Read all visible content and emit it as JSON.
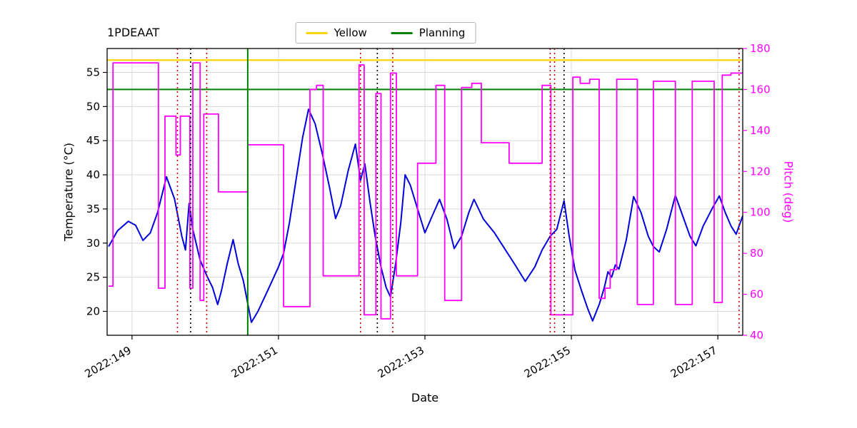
{
  "figure": {
    "title": "1PDEAAT"
  },
  "legend": {
    "items": [
      {
        "label": "Yellow",
        "color": "#ffd700"
      },
      {
        "label": "Planning",
        "color": "#008000"
      }
    ]
  },
  "axes": {
    "x_label": "Date",
    "y_left_label": "Temperature (°C)",
    "y_right_label": "Pitch (deg)",
    "y_right_color": "#ff00ff"
  },
  "chart_data": {
    "type": "line",
    "title": "1PDEAAT",
    "xlabel": "Date",
    "x_unit": "year:day_of_year",
    "xlim": [
      148.66,
      157.34
    ],
    "x_ticks": [
      {
        "value": 149,
        "label": "2022:149"
      },
      {
        "value": 151,
        "label": "2022:151"
      },
      {
        "value": 153,
        "label": "2022:153"
      },
      {
        "value": 155,
        "label": "2022:155"
      },
      {
        "value": 157,
        "label": "2022:157"
      }
    ],
    "ylabel_left": "Temperature (°C)",
    "ylim_left": [
      16.5,
      58.5
    ],
    "y_ticks_left": [
      20,
      25,
      30,
      35,
      40,
      45,
      50,
      55
    ],
    "ylabel_right": "Pitch (deg)",
    "ylim_right": [
      40,
      180
    ],
    "y_ticks_right": [
      40,
      60,
      80,
      100,
      120,
      140,
      160,
      180
    ],
    "grid": true,
    "legend_position": "top-center",
    "series": [
      {
        "name": "temperature",
        "label": "1PDEAAT",
        "axis": "left",
        "color": "#0000dd",
        "style": "solid",
        "width": 2,
        "points": [
          [
            148.68,
            29.5
          ],
          [
            148.8,
            31.8
          ],
          [
            148.95,
            33.2
          ],
          [
            149.05,
            32.6
          ],
          [
            149.15,
            30.4
          ],
          [
            149.25,
            31.5
          ],
          [
            149.35,
            34.5
          ],
          [
            149.47,
            39.7
          ],
          [
            149.58,
            36.5
          ],
          [
            149.68,
            31.0
          ],
          [
            149.73,
            29.0
          ],
          [
            149.78,
            35.8
          ],
          [
            149.83,
            32.0
          ],
          [
            149.93,
            27.5
          ],
          [
            150.03,
            25.0
          ],
          [
            150.1,
            23.5
          ],
          [
            150.17,
            21.0
          ],
          [
            150.22,
            23.0
          ],
          [
            150.3,
            27.0
          ],
          [
            150.38,
            30.5
          ],
          [
            150.45,
            27.0
          ],
          [
            150.52,
            24.5
          ],
          [
            150.63,
            18.4
          ],
          [
            150.72,
            20.0
          ],
          [
            150.85,
            23.0
          ],
          [
            151.0,
            26.5
          ],
          [
            151.07,
            28.5
          ],
          [
            151.15,
            33.0
          ],
          [
            151.25,
            40.0
          ],
          [
            151.33,
            45.5
          ],
          [
            151.41,
            49.6
          ],
          [
            151.5,
            47.5
          ],
          [
            151.6,
            43.0
          ],
          [
            151.7,
            38.0
          ],
          [
            151.78,
            33.6
          ],
          [
            151.85,
            35.5
          ],
          [
            151.95,
            40.5
          ],
          [
            152.05,
            44.5
          ],
          [
            152.12,
            39.2
          ],
          [
            152.18,
            41.6
          ],
          [
            152.25,
            36.0
          ],
          [
            152.32,
            31.0
          ],
          [
            152.4,
            26.5
          ],
          [
            152.47,
            23.5
          ],
          [
            152.53,
            22.1
          ],
          [
            152.6,
            27.0
          ],
          [
            152.67,
            33.0
          ],
          [
            152.73,
            40.0
          ],
          [
            152.8,
            38.5
          ],
          [
            152.9,
            35.0
          ],
          [
            153.0,
            31.5
          ],
          [
            153.1,
            34.0
          ],
          [
            153.2,
            36.4
          ],
          [
            153.3,
            33.5
          ],
          [
            153.4,
            29.2
          ],
          [
            153.5,
            31.0
          ],
          [
            153.6,
            34.5
          ],
          [
            153.67,
            36.4
          ],
          [
            153.8,
            33.5
          ],
          [
            153.95,
            31.5
          ],
          [
            154.1,
            29.0
          ],
          [
            154.22,
            27.0
          ],
          [
            154.37,
            24.4
          ],
          [
            154.5,
            26.5
          ],
          [
            154.6,
            29.0
          ],
          [
            154.71,
            31.0
          ],
          [
            154.8,
            32.0
          ],
          [
            154.9,
            36.2
          ],
          [
            154.97,
            31.0
          ],
          [
            155.05,
            26.0
          ],
          [
            155.14,
            23.0
          ],
          [
            155.22,
            20.5
          ],
          [
            155.29,
            18.6
          ],
          [
            155.38,
            21.0
          ],
          [
            155.45,
            23.5
          ],
          [
            155.5,
            25.8
          ],
          [
            155.55,
            25.0
          ],
          [
            155.6,
            26.8
          ],
          [
            155.65,
            26.2
          ],
          [
            155.75,
            30.5
          ],
          [
            155.85,
            36.8
          ],
          [
            155.95,
            34.5
          ],
          [
            156.05,
            31.0
          ],
          [
            156.12,
            29.5
          ],
          [
            156.2,
            28.7
          ],
          [
            156.3,
            32.0
          ],
          [
            156.42,
            37.0
          ],
          [
            156.52,
            34.0
          ],
          [
            156.62,
            31.0
          ],
          [
            156.7,
            29.6
          ],
          [
            156.8,
            32.5
          ],
          [
            156.92,
            35.0
          ],
          [
            157.02,
            36.9
          ],
          [
            157.1,
            34.5
          ],
          [
            157.18,
            32.5
          ],
          [
            157.25,
            31.3
          ],
          [
            157.34,
            34.0
          ]
        ]
      },
      {
        "name": "pitch",
        "label": "Pitch",
        "axis": "right",
        "color": "#ff00ff",
        "style": "step",
        "width": 1.8,
        "points": [
          [
            148.68,
            64
          ],
          [
            148.74,
            173
          ],
          [
            149.36,
            63
          ],
          [
            149.45,
            147
          ],
          [
            149.6,
            128
          ],
          [
            149.66,
            147
          ],
          [
            149.79,
            63
          ],
          [
            149.83,
            173
          ],
          [
            149.93,
            57
          ],
          [
            149.98,
            148
          ],
          [
            150.18,
            110
          ],
          [
            150.58,
            133
          ],
          [
            151.07,
            54
          ],
          [
            151.43,
            160
          ],
          [
            151.52,
            162
          ],
          [
            151.61,
            69
          ],
          [
            152.1,
            172
          ],
          [
            152.17,
            50
          ],
          [
            152.33,
            158
          ],
          [
            152.4,
            48
          ],
          [
            152.53,
            168
          ],
          [
            152.61,
            69
          ],
          [
            152.9,
            124
          ],
          [
            153.15,
            162
          ],
          [
            153.27,
            57
          ],
          [
            153.5,
            161
          ],
          [
            153.64,
            163
          ],
          [
            153.77,
            134
          ],
          [
            154.15,
            124
          ],
          [
            154.6,
            162
          ],
          [
            154.72,
            50
          ],
          [
            155.02,
            166
          ],
          [
            155.12,
            163
          ],
          [
            155.25,
            165
          ],
          [
            155.38,
            58
          ],
          [
            155.46,
            63
          ],
          [
            155.53,
            72
          ],
          [
            155.62,
            165
          ],
          [
            155.9,
            55
          ],
          [
            156.12,
            164
          ],
          [
            156.42,
            55
          ],
          [
            156.65,
            164
          ],
          [
            156.95,
            56
          ],
          [
            157.06,
            167
          ],
          [
            157.18,
            168
          ],
          [
            157.34,
            168
          ]
        ]
      }
    ],
    "hlines": [
      {
        "name": "yellow-limit",
        "label": "Yellow",
        "axis": "left",
        "y": 56.8,
        "color": "#ffd700",
        "style": "solid",
        "width": 2.2
      },
      {
        "name": "planning-limit",
        "label": "Planning",
        "axis": "left",
        "y": 52.5,
        "color": "#008000",
        "style": "solid",
        "width": 2
      }
    ],
    "vlines": [
      {
        "name": "planning-start",
        "x": 150.58,
        "color": "#008000",
        "style": "solid",
        "width": 2
      },
      {
        "name": "event-red-1",
        "x": 149.62,
        "color": "#cc0000",
        "style": "dotted",
        "width": 1.6
      },
      {
        "name": "event-black-1",
        "x": 149.8,
        "color": "#000000",
        "style": "dotted",
        "width": 1.6
      },
      {
        "name": "event-red-2",
        "x": 150.02,
        "color": "#cc0000",
        "style": "dotted",
        "width": 1.6
      },
      {
        "name": "event-red-3",
        "x": 152.12,
        "color": "#cc0000",
        "style": "dotted",
        "width": 1.6
      },
      {
        "name": "event-black-2",
        "x": 152.35,
        "color": "#000000",
        "style": "dotted",
        "width": 1.6
      },
      {
        "name": "event-red-4",
        "x": 152.56,
        "color": "#cc0000",
        "style": "dotted",
        "width": 1.6
      },
      {
        "name": "event-red-5",
        "x": 154.71,
        "color": "#cc0000",
        "style": "dotted",
        "width": 1.6
      },
      {
        "name": "event-red-6",
        "x": 154.77,
        "color": "#cc0000",
        "style": "dotted",
        "width": 1.6
      },
      {
        "name": "event-black-3",
        "x": 154.9,
        "color": "#000000",
        "style": "dotted",
        "width": 1.6
      },
      {
        "name": "event-red-7",
        "x": 157.29,
        "color": "#cc0000",
        "style": "dotted",
        "width": 1.6
      }
    ]
  }
}
